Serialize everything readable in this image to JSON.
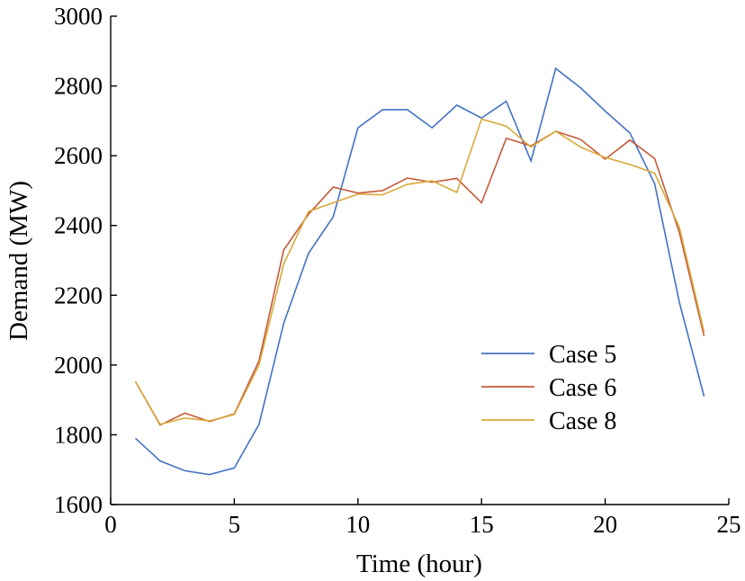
{
  "chart_data": {
    "type": "line",
    "xlabel": "Time (hour)",
    "ylabel": "Demand (MW)",
    "xlim": [
      0,
      25
    ],
    "ylim": [
      1600,
      3000
    ],
    "xticks": [
      0,
      5,
      10,
      15,
      20,
      25
    ],
    "yticks": [
      1600,
      1800,
      2000,
      2200,
      2400,
      2600,
      2800,
      3000
    ],
    "grid": false,
    "legend_position": "center-right",
    "x": [
      1,
      2,
      3,
      4,
      5,
      6,
      7,
      8,
      9,
      10,
      11,
      12,
      13,
      14,
      15,
      16,
      17,
      18,
      19,
      20,
      21,
      22,
      23,
      24
    ],
    "series": [
      {
        "name": "Case 5",
        "color": "#4472c4",
        "values": [
          1790,
          1725,
          1697,
          1686,
          1705,
          1830,
          2120,
          2320,
          2425,
          2680,
          2732,
          2732,
          2680,
          2745,
          2708,
          2756,
          2585,
          2850,
          2795,
          2728,
          2665,
          2520,
          2180,
          1910
        ]
      },
      {
        "name": "Case 6",
        "color": "#c55a3a",
        "values": [
          1953,
          1828,
          1862,
          1838,
          1860,
          2012,
          2330,
          2432,
          2510,
          2493,
          2500,
          2536,
          2524,
          2535,
          2465,
          2650,
          2628,
          2670,
          2647,
          2590,
          2645,
          2592,
          2380,
          2083
        ]
      },
      {
        "name": "Case 8",
        "color": "#d9a93b",
        "values": [
          1953,
          1830,
          1848,
          1840,
          1858,
          2000,
          2290,
          2440,
          2465,
          2490,
          2488,
          2518,
          2528,
          2495,
          2705,
          2685,
          2625,
          2670,
          2625,
          2595,
          2575,
          2550,
          2395,
          2095
        ]
      }
    ]
  }
}
